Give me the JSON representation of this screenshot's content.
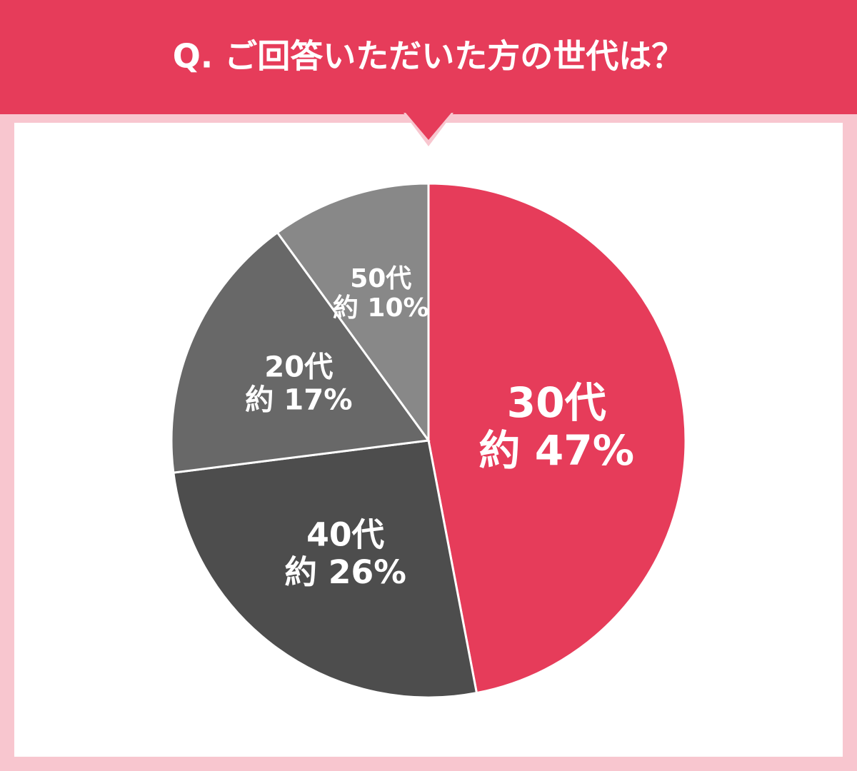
{
  "chart_data": {
    "type": "pie",
    "title": "Q. ご回答いただいた方の世代は？",
    "categories": [
      "30代",
      "40代",
      "20代",
      "50代"
    ],
    "values": [
      47,
      26,
      17,
      10
    ],
    "value_labels": [
      "約 47%",
      "約 26%",
      "約 17%",
      "約 10%"
    ],
    "colors": [
      "#e63c5a",
      "#4d4d4d",
      "#686868",
      "#888888"
    ]
  }
}
